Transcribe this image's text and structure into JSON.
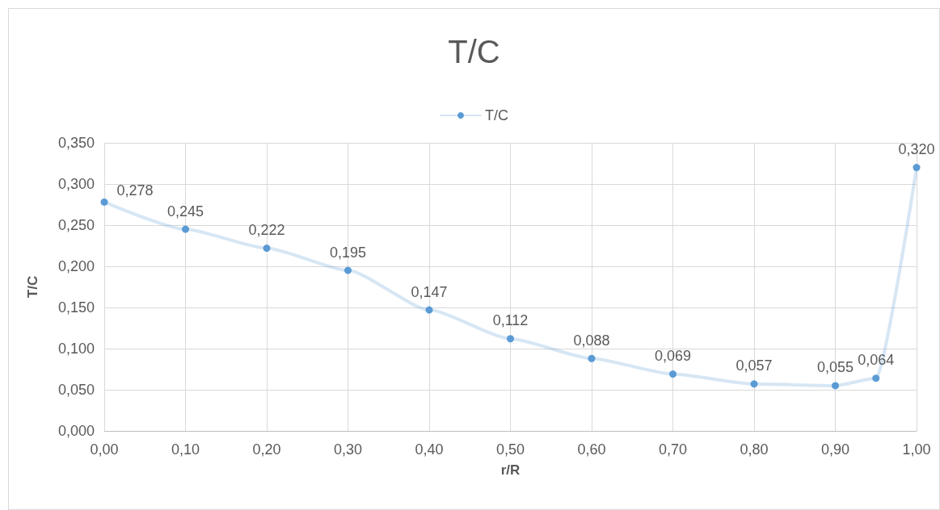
{
  "chart_data": {
    "type": "line",
    "title": "T/C",
    "xlabel": "r/R",
    "ylabel": "T/C",
    "x": [
      0,
      0.1,
      0.2,
      0.3,
      0.4,
      0.5,
      0.6,
      0.7,
      0.8,
      0.9,
      0.95,
      1.0
    ],
    "series": [
      {
        "name": "T/C",
        "color": "#5b9bd5",
        "values": [
          0.278,
          0.245,
          0.222,
          0.195,
          0.147,
          0.112,
          0.088,
          0.069,
          0.057,
          0.055,
          0.064,
          0.32
        ],
        "value_labels": [
          "0,278",
          "0,245",
          "0,222",
          "0,195",
          "0,147",
          "0,112",
          "0,088",
          "0,069",
          "0,057",
          "0,055",
          "0,064",
          "0,320"
        ]
      }
    ],
    "xlim": [
      0,
      1.0
    ],
    "xticks": [
      {
        "value": 0,
        "label": "0,00"
      },
      {
        "value": 0.1,
        "label": "0,10"
      },
      {
        "value": 0.2,
        "label": "0,20"
      },
      {
        "value": 0.3,
        "label": "0,30"
      },
      {
        "value": 0.4,
        "label": "0,40"
      },
      {
        "value": 0.5,
        "label": "0,50"
      },
      {
        "value": 0.6,
        "label": "0,60"
      },
      {
        "value": 0.7,
        "label": "0,70"
      },
      {
        "value": 0.8,
        "label": "0,80"
      },
      {
        "value": 0.9,
        "label": "0,90"
      },
      {
        "value": 1.0,
        "label": "1,00"
      }
    ],
    "ylim": [
      0,
      0.35
    ],
    "yticks": [
      {
        "value": 0,
        "label": "0,000"
      },
      {
        "value": 0.05,
        "label": "0,050"
      },
      {
        "value": 0.1,
        "label": "0,100"
      },
      {
        "value": 0.15,
        "label": "0,150"
      },
      {
        "value": 0.2,
        "label": "0,200"
      },
      {
        "value": 0.25,
        "label": "0,250"
      },
      {
        "value": 0.3,
        "label": "0,300"
      },
      {
        "value": 0.35,
        "label": "0,350"
      }
    ],
    "grid": true,
    "legend": "top",
    "marker": "circle",
    "line_style": "solid"
  }
}
